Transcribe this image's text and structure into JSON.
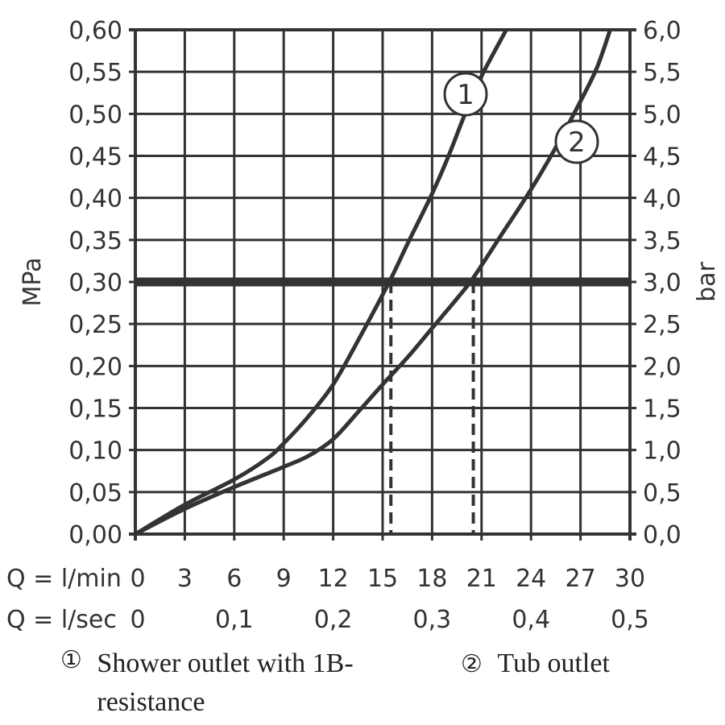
{
  "chart_data": {
    "type": "line",
    "title": "",
    "ylabel_left": "MPa",
    "ylabel_right": "bar",
    "xlabel_rows": [
      {
        "label": "Q = l/min",
        "ticks": [
          "0",
          "3",
          "6",
          "9",
          "12",
          "15",
          "18",
          "21",
          "24",
          "27",
          "30"
        ],
        "values": [
          0,
          3,
          6,
          9,
          12,
          15,
          18,
          21,
          24,
          27,
          30
        ]
      },
      {
        "label": "Q = l/sec",
        "ticks": [
          "0",
          "0,1",
          "0,2",
          "0,3",
          "0,4",
          "0,5"
        ],
        "values": [
          0,
          6,
          12,
          18,
          24,
          30
        ]
      }
    ],
    "xlim": [
      0,
      30
    ],
    "ylim": [
      0,
      0.6
    ],
    "yticks_left": [
      "0,00",
      "0,05",
      "0,10",
      "0,15",
      "0,20",
      "0,25",
      "0,30",
      "0,35",
      "0,40",
      "0,45",
      "0,50",
      "0,55",
      "0,60"
    ],
    "yticks_right": [
      "0,0",
      "0,5",
      "1,0",
      "1,5",
      "2,0",
      "2,5",
      "3,0",
      "3,5",
      "4,0",
      "4,5",
      "5,0",
      "5,5",
      "6,0"
    ],
    "grid": true,
    "reference_line": {
      "y": 0.3
    },
    "dashed_markers": [
      15.5,
      20.5
    ],
    "series": [
      {
        "name": "Shower outlet with 1B-resistance",
        "marker": "1",
        "x": [
          0,
          3,
          6,
          8,
          9,
          10.5,
          12,
          13.5,
          15.4,
          16.5,
          18,
          19,
          20,
          21,
          22.5
        ],
        "y": [
          0,
          0.035,
          0.065,
          0.09,
          0.108,
          0.14,
          0.178,
          0.23,
          0.3,
          0.345,
          0.405,
          0.45,
          0.5,
          0.545,
          0.6
        ]
      },
      {
        "name": "Tub outlet",
        "marker": "2",
        "x": [
          0,
          3,
          6,
          9,
          10.5,
          12,
          13.5,
          15,
          16.5,
          18,
          19.5,
          20.5,
          22,
          24,
          25.5,
          27,
          28,
          28.8
        ],
        "y": [
          0,
          0.03,
          0.056,
          0.08,
          0.093,
          0.113,
          0.145,
          0.178,
          0.21,
          0.245,
          0.28,
          0.305,
          0.35,
          0.41,
          0.46,
          0.515,
          0.555,
          0.6
        ]
      }
    ],
    "legend": [
      {
        "marker": "①",
        "text": "Shower outlet with 1B-resistance"
      },
      {
        "marker": "②",
        "text": "Tub outlet"
      }
    ],
    "colors": {
      "line": "#333333"
    }
  }
}
